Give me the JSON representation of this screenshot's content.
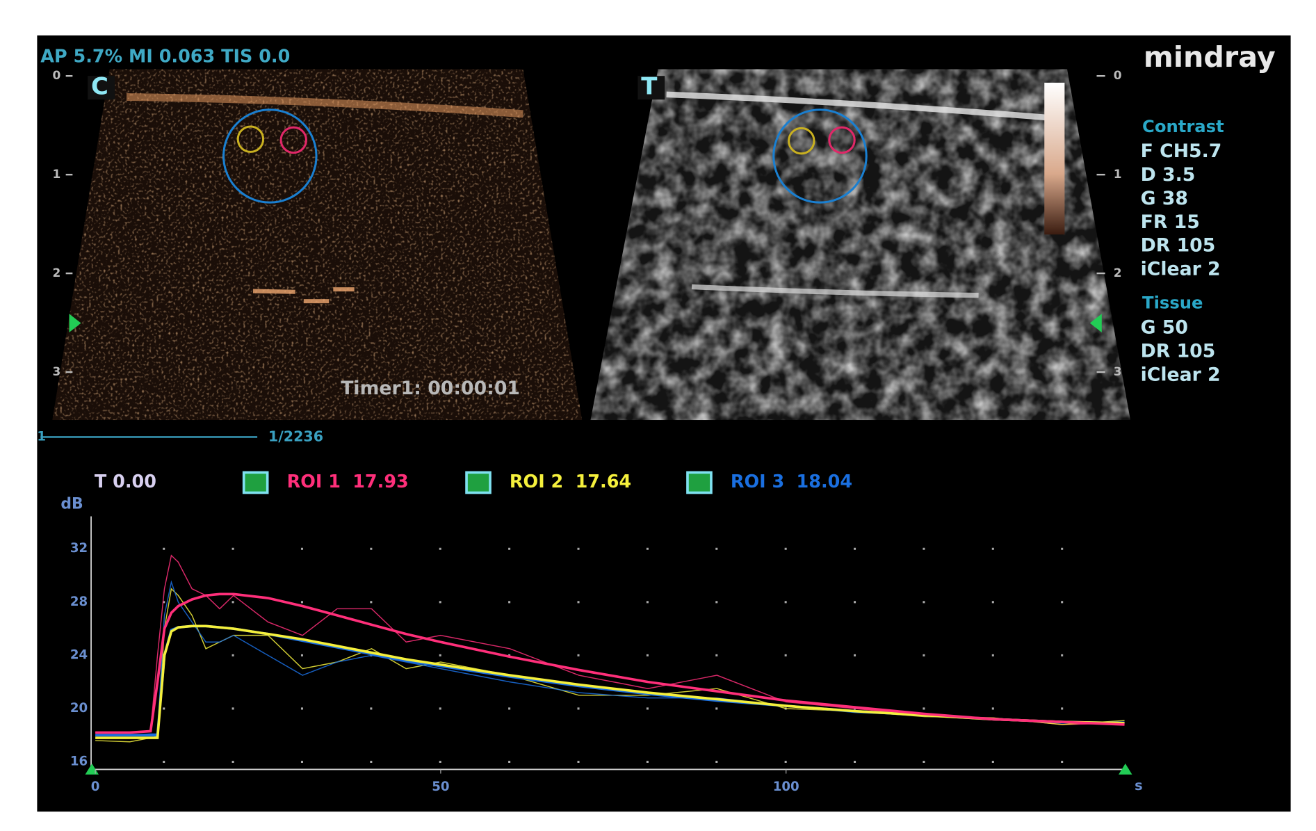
{
  "header": {
    "status": "AP 5.7%  MI 0.063 TIS 0.0",
    "logo": "mindray"
  },
  "images": {
    "left_marker": "C",
    "right_marker": "T",
    "depth_ticks": [
      0,
      1,
      2,
      3
    ],
    "timer": "Timer1: 00:00:01",
    "frame_start": "1",
    "frame": "1/2236"
  },
  "params": {
    "contrast_title": "Contrast",
    "contrast": [
      "F CH5.7",
      "D 3.5",
      "G 38",
      "FR 15",
      "DR 105",
      "iClear 2"
    ],
    "tissue_title": "Tissue",
    "tissue": [
      "G 50",
      "DR 105",
      "iClear 2"
    ]
  },
  "legend_time": "T 0.00",
  "chart_data": {
    "type": "line",
    "y_label": "dB",
    "x_label": "s",
    "x": [
      0,
      5,
      8,
      9,
      10,
      11,
      12,
      14,
      16,
      18,
      20,
      25,
      30,
      35,
      40,
      45,
      50,
      60,
      70,
      80,
      90,
      100,
      110,
      120,
      130,
      140,
      149
    ],
    "xlim": [
      0,
      149
    ],
    "ylim": [
      16,
      34
    ],
    "xticks": [
      0,
      50,
      100
    ],
    "yticks": [
      16,
      20,
      24,
      28,
      32
    ],
    "grid": true,
    "series": [
      {
        "name": "ROI 1",
        "legend_value": "17.93",
        "color": "#ff2f7a",
        "values": [
          18.2,
          18.2,
          18.3,
          24,
          29,
          31.5,
          31,
          29,
          28.5,
          27.5,
          28.5,
          26.5,
          25.5,
          27.5,
          27.5,
          25,
          25.5,
          24.5,
          22.5,
          21.5,
          22.5,
          20.5,
          20,
          19.5,
          19.3,
          18.8,
          18.9
        ],
        "fit": [
          18.2,
          18.2,
          18.3,
          22,
          26,
          27.2,
          27.7,
          28.2,
          28.5,
          28.6,
          28.6,
          28.3,
          27.7,
          27.0,
          26.3,
          25.6,
          25.0,
          23.9,
          22.9,
          22.0,
          21.3,
          20.6,
          20.1,
          19.6,
          19.2,
          19.0,
          18.8
        ]
      },
      {
        "name": "ROI 2",
        "legend_value": "17.64",
        "color": "#f5f03c",
        "values": [
          17.6,
          17.5,
          17.8,
          17.9,
          26,
          29,
          28.5,
          27,
          24.5,
          25,
          25.5,
          25.5,
          23,
          23.5,
          24.5,
          23,
          23.5,
          22.5,
          21,
          21,
          21.5,
          20,
          19.8,
          19.4,
          19.3,
          18.8,
          19.1
        ],
        "fit": [
          17.8,
          17.8,
          17.8,
          17.8,
          24,
          25.8,
          26.1,
          26.2,
          26.2,
          26.1,
          26.0,
          25.6,
          25.2,
          24.7,
          24.2,
          23.7,
          23.3,
          22.5,
          21.8,
          21.2,
          20.7,
          20.2,
          19.8,
          19.5,
          19.2,
          19.0,
          18.9
        ]
      },
      {
        "name": "ROI 3",
        "legend_value": "18.04",
        "color": "#1a6fe0",
        "values": [
          18.0,
          18.0,
          18.1,
          18.1,
          27,
          29.5,
          28,
          26.5,
          25,
          25,
          25.5,
          24,
          22.5,
          23.5,
          24,
          23.5,
          23,
          22,
          21.2,
          20.8,
          20.8,
          20.2,
          19.7,
          19.5,
          19.2,
          18.9,
          19.0
        ],
        "fit": [
          18.0,
          18.0,
          18.0,
          18.0,
          24,
          25.9,
          26.1,
          26.2,
          26.2,
          26.1,
          26.0,
          25.6,
          25.1,
          24.6,
          24.1,
          23.6,
          23.2,
          22.4,
          21.7,
          21.1,
          20.6,
          20.2,
          19.8,
          19.5,
          19.2,
          19.0,
          18.9
        ]
      }
    ]
  }
}
